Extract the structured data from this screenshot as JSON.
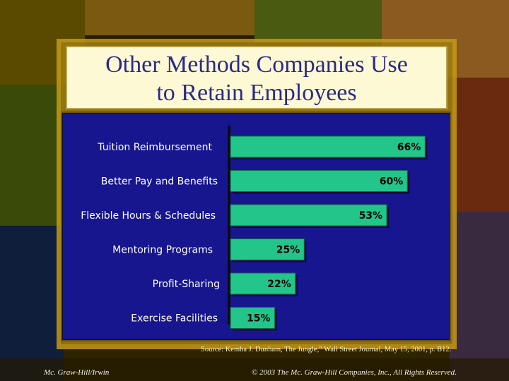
{
  "title_line1": "Other Methods Companies Use",
  "title_line2": "to Retain Employees",
  "colors": {
    "bar": "#22c58a",
    "panel": "#17168f",
    "label_text": "#ffffff",
    "value_text": "#000000",
    "axis": "#0a0a14"
  },
  "chart_data": {
    "type": "bar",
    "orientation": "horizontal",
    "categories": [
      "Tuition Reimbursement",
      "Better Pay and Benefits",
      "Flexible Hours & Schedules",
      "Mentoring Programs",
      "Profit-Sharing",
      "Exercise Facilities"
    ],
    "values": [
      66,
      60,
      53,
      25,
      22,
      15
    ],
    "data_labels": [
      "66%",
      "60%",
      "53%",
      "25%",
      "22%",
      "15%"
    ],
    "title": "Other Methods Companies Use to Retain Employees",
    "xlabel": "",
    "ylabel": "",
    "xlim": [
      0,
      70
    ],
    "grid": false,
    "legend": "none"
  },
  "source": "Source: Kemba J. Dunham, The Jungle,” Wall Street Journal, May 15, 2001, p. B12.",
  "footer": {
    "publisher": "Mc. Graw-Hill/Irwin",
    "copyright": "© 2003 The Mc. Graw-Hill Companies, Inc., All Rights Reserved."
  }
}
